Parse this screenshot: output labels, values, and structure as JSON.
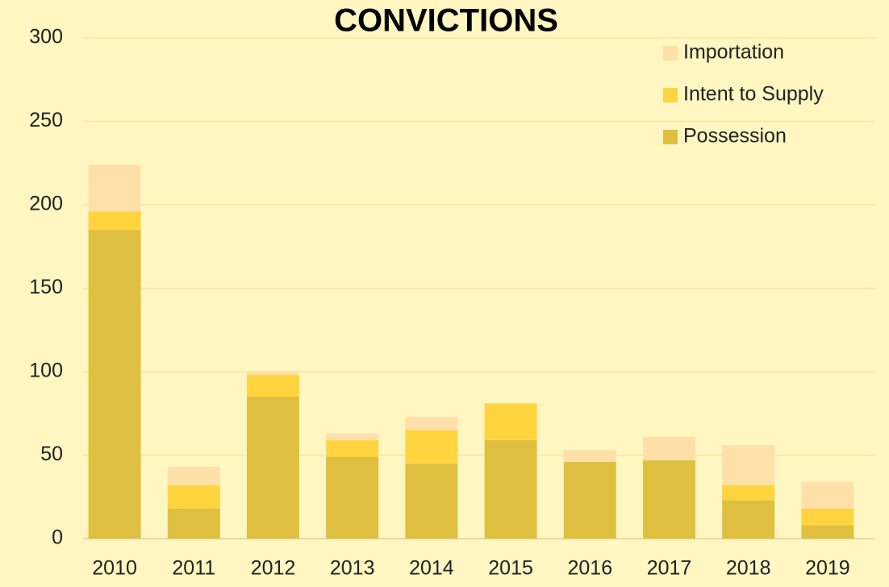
{
  "chart_data": {
    "type": "stacked_bar",
    "title": "CONVICTIONS",
    "categories": [
      "2010",
      "2011",
      "2012",
      "2013",
      "2014",
      "2015",
      "2016",
      "2017",
      "2018",
      "2019"
    ],
    "series": [
      {
        "name": "Possession",
        "color": "#dfbf3f",
        "values": [
          185,
          18,
          85,
          49,
          45,
          59,
          46,
          47,
          23,
          8
        ]
      },
      {
        "name": "Intent to Supply",
        "color": "#ffd43f",
        "values": [
          11,
          14,
          13,
          10,
          20,
          22,
          0,
          0,
          9,
          10
        ]
      },
      {
        "name": "Importation",
        "color": "#ffe0a8",
        "values": [
          28,
          11,
          2,
          4,
          8,
          0,
          7,
          14,
          24,
          16
        ]
      }
    ],
    "ylim": [
      0,
      300
    ],
    "yticks": [
      0,
      50,
      100,
      150,
      200,
      250,
      300
    ],
    "grid": true,
    "legend": "top-right"
  }
}
